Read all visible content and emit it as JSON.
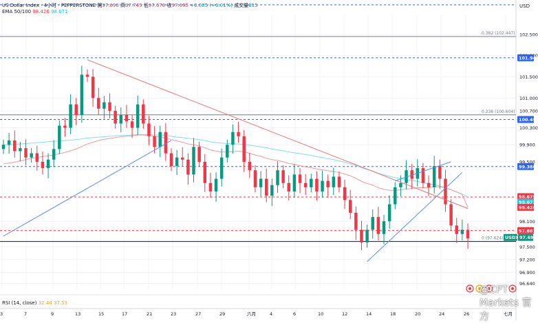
{
  "header": {
    "symbol": "US Dollar Index · 4小时 · PEPPERSTONE",
    "open_label": "開",
    "open": "97.690",
    "high_label": "高",
    "high": "97.745",
    "low_label": "低",
    "low": "97.678",
    "close_label": "收",
    "close": "97.695",
    "change": "+0.005 (+0.01%)",
    "volume_label": "成交量",
    "volume": "815",
    "ema_label": "EMA 50/100",
    "ema50": "98.426",
    "ema100": "98.671"
  },
  "rsi": {
    "label": "RSI (14, close)",
    "v1": "32.44",
    "v2": "37.53"
  },
  "currency": "USD",
  "fib_labels": [
    "0.382 (102.447)",
    "0.236 (100.604)",
    "0 (97.624)"
  ],
  "price_ticks": [
    "102.500",
    "102.000",
    "101.500",
    "101.000",
    "100.700",
    "100.300",
    "99.900",
    "99.500",
    "98.100",
    "97.500",
    "97.200",
    "96.900",
    "96.640"
  ],
  "price_badges": [
    {
      "text": "101.948",
      "color": "#2962ff"
    },
    {
      "text": "100.495",
      "color": "#2962ff"
    },
    {
      "text": "99.388",
      "color": "#2962ff"
    },
    {
      "text": "98.679",
      "color": "#f23645"
    },
    {
      "text": "98.671",
      "color": "#26c6da"
    },
    {
      "text": "98.426",
      "color": "#f23645"
    },
    {
      "text": "97.881",
      "color": "#f23645"
    },
    {
      "text": "USDX",
      "color": "#089981"
    },
    {
      "text": "97.695",
      "color": "#089981"
    }
  ],
  "time_ticks": [
    "3",
    "7",
    "9",
    "13",
    "15",
    "17",
    "21",
    "23",
    "27",
    "29",
    "六月",
    "4",
    "6",
    "10",
    "12",
    "14",
    "18",
    "20",
    "24",
    "26",
    "七月"
  ],
  "watermark": "@CPT Markets 官方",
  "chart_data": {
    "type": "candlestick",
    "title": "US Dollar Index",
    "timeframe": "4h",
    "ylim": [
      96.5,
      102.95
    ],
    "close_series": [
      99.9,
      100.0,
      99.75,
      99.82,
      99.6,
      99.7,
      99.5,
      99.35,
      99.55,
      99.8,
      100.35,
      100.3,
      100.85,
      100.6,
      101.55,
      101.5,
      101.0,
      100.75,
      100.9,
      100.7,
      100.4,
      100.6,
      100.45,
      100.3,
      100.85,
      100.4,
      100.1,
      99.85,
      100.2,
      99.7,
      99.4,
      99.6,
      99.55,
      99.2,
      99.85,
      99.5,
      99.0,
      98.8,
      99.1,
      99.6,
      99.9,
      100.2,
      100.1,
      99.5,
      99.3,
      98.9,
      99.1,
      98.7,
      98.95,
      99.3,
      99.0,
      98.8,
      99.2,
      99.0,
      98.9,
      99.1,
      98.8,
      99.05,
      98.9,
      99.15,
      98.9,
      98.6,
      98.3,
      97.9,
      97.6,
      97.9,
      98.2,
      97.8,
      98.1,
      98.5,
      98.9,
      99.0,
      99.3,
      99.1,
      99.35,
      99.0,
      98.9,
      99.4,
      99.1,
      98.5,
      98.0,
      97.8,
      97.9,
      97.695
    ],
    "ema50": [
      99.45,
      99.47,
      99.49,
      99.52,
      99.55,
      99.58,
      99.6,
      99.62,
      99.64,
      99.66,
      99.69,
      99.72,
      99.76,
      99.8,
      99.86,
      99.92,
      99.96,
      100.0,
      100.03,
      100.05,
      100.07,
      100.09,
      100.1,
      100.11,
      100.13,
      100.13,
      100.12,
      100.1,
      100.09,
      100.06,
      100.02,
      99.99,
      99.96,
      99.92,
      99.9,
      99.87,
      99.83,
      99.78,
      99.75,
      99.73,
      99.73,
      99.74,
      99.75,
      99.73,
      99.7,
      99.66,
      99.63,
      99.58,
      99.55,
      99.53,
      99.5,
      99.46,
      99.44,
      99.41,
      99.38,
      99.36,
      99.33,
      99.31,
      99.29,
      99.27,
      99.25,
      99.21,
      99.17,
      99.11,
      99.04,
      98.99,
      98.95,
      98.89,
      98.85,
      98.83,
      98.83,
      98.84,
      98.86,
      98.87,
      98.89,
      98.89,
      98.89,
      98.91,
      98.91,
      98.89,
      98.84,
      98.79,
      98.73,
      98.426
    ],
    "ema100": [
      99.9,
      99.9,
      99.91,
      99.92,
      99.93,
      99.94,
      99.95,
      99.96,
      99.97,
      99.98,
      99.99,
      100.0,
      100.01,
      100.02,
      100.04,
      100.06,
      100.07,
      100.08,
      100.09,
      100.1,
      100.11,
      100.12,
      100.12,
      100.13,
      100.14,
      100.14,
      100.14,
      100.13,
      100.13,
      100.12,
      100.1,
      100.08,
      100.07,
      100.05,
      100.04,
      100.02,
      100.0,
      99.97,
      99.95,
      99.94,
      99.93,
      99.92,
      99.92,
      99.91,
      99.89,
      99.87,
      99.85,
      99.83,
      99.8,
      99.78,
      99.76,
      99.73,
      99.71,
      99.69,
      99.67,
      99.65,
      99.62,
      99.6,
      99.57,
      99.55,
      99.52,
      99.49,
      99.45,
      99.41,
      99.36,
      99.32,
      99.28,
      99.23,
      99.19,
      99.16,
      99.13,
      99.1,
      99.08,
      99.06,
      99.04,
      99.01,
      98.98,
      98.96,
      98.93,
      98.89,
      98.84,
      98.79,
      98.74,
      98.671
    ],
    "horizontal_levels": [
      102.447,
      101.948,
      100.604,
      100.495,
      99.388,
      98.671,
      97.881,
      97.624
    ],
    "trendlines": [
      {
        "name": "downtrend",
        "color": "#e57373",
        "from": [
          15,
          101.9
        ],
        "to": [
          83,
          98.4
        ]
      },
      {
        "name": "uptrend",
        "color": "#5b8def",
        "from": [
          0,
          97.75
        ],
        "to": [
          30,
          100.0
        ]
      },
      {
        "name": "channel-lower",
        "color": "#5b8def",
        "from": [
          65,
          97.15
        ],
        "to": [
          82,
          99.25
        ]
      },
      {
        "name": "channel-upper",
        "color": "#5b8def",
        "from": [
          70,
          99.05
        ],
        "to": [
          80,
          99.5
        ]
      }
    ]
  }
}
